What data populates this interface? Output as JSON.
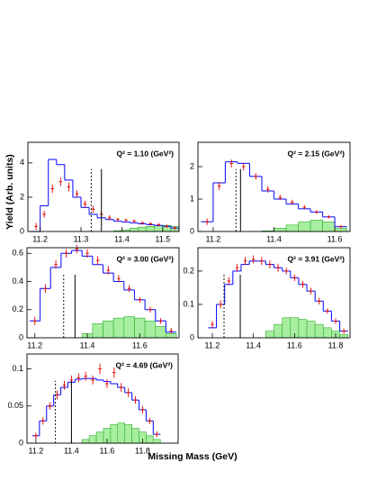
{
  "chart_data": [
    {
      "type": "histogram-fit",
      "annotation": "Q² = 1.10 (GeV²)",
      "ylabel": "Yield (Arb. units)",
      "xlim": [
        11.17,
        11.54
      ],
      "ylim": [
        0,
        5.2
      ],
      "xticks": [
        11.2,
        11.3,
        11.4,
        11.5
      ],
      "yticks": [
        0,
        2,
        4
      ],
      "cuts": {
        "dashed": 11.325,
        "solid": 11.35
      },
      "x": [
        11.19,
        11.21,
        11.23,
        11.25,
        11.27,
        11.29,
        11.31,
        11.33,
        11.35,
        11.37,
        11.39,
        11.41,
        11.43,
        11.45,
        11.47,
        11.49,
        11.51,
        11.53
      ],
      "model": [
        0,
        1.5,
        4.2,
        3.9,
        3.0,
        2.0,
        1.4,
        1.0,
        0.8,
        0.7,
        0.6,
        0.55,
        0.5,
        0.45,
        0.4,
        0.35,
        0.3,
        0.2
      ],
      "data": [
        0.3,
        1.0,
        2.5,
        2.9,
        2.6,
        2.2,
        1.6,
        1.3,
        1.0,
        0.8,
        0.7,
        0.65,
        0.6,
        0.5,
        0.45,
        0.4,
        0.3,
        0.2
      ],
      "errors": [
        0.2,
        0.2,
        0.25,
        0.25,
        0.25,
        0.2,
        0.2,
        0.2,
        0.15,
        0.15,
        0.1,
        0.1,
        0.1,
        0.1,
        0.1,
        0.1,
        0.1,
        0.1
      ],
      "background": [
        0,
        0,
        0,
        0,
        0,
        0,
        0,
        0,
        0,
        0,
        0.05,
        0.1,
        0.2,
        0.25,
        0.3,
        0.35,
        0.35,
        0.3
      ]
    },
    {
      "type": "histogram-fit",
      "annotation": "Q² = 2.15 (GeV²)",
      "xlim": [
        11.15,
        11.65
      ],
      "ylim": [
        0,
        2.75
      ],
      "xticks": [
        11.2,
        11.4,
        11.6
      ],
      "yticks": [
        0,
        1,
        2
      ],
      "cuts": {
        "dashed": 11.275,
        "solid": 11.29
      },
      "x": [
        11.18,
        11.22,
        11.26,
        11.3,
        11.34,
        11.38,
        11.42,
        11.46,
        11.5,
        11.54,
        11.58,
        11.62
      ],
      "model": [
        0.3,
        1.5,
        2.15,
        2.1,
        1.7,
        1.25,
        1.0,
        0.85,
        0.7,
        0.6,
        0.45,
        0.15
      ],
      "data": [
        0.3,
        1.4,
        2.1,
        2.0,
        1.7,
        1.3,
        1.05,
        0.9,
        0.75,
        0.6,
        0.45,
        0.15
      ],
      "errors": [
        0.1,
        0.12,
        0.12,
        0.12,
        0.1,
        0.1,
        0.08,
        0.08,
        0.06,
        0.06,
        0.05,
        0.05
      ],
      "background": [
        0,
        0,
        0,
        0,
        0,
        0.02,
        0.1,
        0.2,
        0.3,
        0.35,
        0.3,
        0.1
      ]
    },
    {
      "type": "histogram-fit",
      "annotation": "Q² = 3.00 (GeV²)",
      "xlim": [
        11.17,
        11.75
      ],
      "ylim": [
        0,
        0.64
      ],
      "xticks": [
        11.2,
        11.4,
        11.6
      ],
      "yticks": [
        0,
        0.2,
        0.4,
        0.6
      ],
      "cuts": {
        "dashed": 11.31,
        "solid": 11.353
      },
      "x": [
        11.2,
        11.24,
        11.28,
        11.32,
        11.36,
        11.4,
        11.44,
        11.48,
        11.52,
        11.56,
        11.6,
        11.64,
        11.68,
        11.72
      ],
      "model": [
        0.12,
        0.35,
        0.5,
        0.6,
        0.62,
        0.58,
        0.52,
        0.46,
        0.4,
        0.34,
        0.27,
        0.2,
        0.12,
        0.04
      ],
      "data": [
        0.12,
        0.35,
        0.52,
        0.6,
        0.63,
        0.6,
        0.55,
        0.48,
        0.42,
        0.35,
        0.27,
        0.2,
        0.12,
        0.05
      ],
      "errors": [
        0.03,
        0.03,
        0.03,
        0.03,
        0.03,
        0.03,
        0.03,
        0.03,
        0.025,
        0.025,
        0.02,
        0.02,
        0.02,
        0.02
      ],
      "background": [
        0,
        0,
        0,
        0,
        0,
        0.03,
        0.1,
        0.12,
        0.14,
        0.15,
        0.14,
        0.12,
        0.08,
        0.03
      ]
    },
    {
      "type": "histogram-fit",
      "annotation": "Q² = 3.91 (GeV²)",
      "xlim": [
        11.13,
        11.87
      ],
      "ylim": [
        0,
        0.27
      ],
      "xticks": [
        11.2,
        11.4,
        11.6,
        11.8
      ],
      "yticks": [
        0,
        0.1,
        0.2
      ],
      "cuts": {
        "dashed": 11.257,
        "solid": 11.336
      },
      "x": [
        11.2,
        11.24,
        11.28,
        11.32,
        11.36,
        11.4,
        11.44,
        11.48,
        11.52,
        11.56,
        11.6,
        11.64,
        11.68,
        11.72,
        11.76,
        11.8,
        11.84
      ],
      "model": [
        0.03,
        0.1,
        0.16,
        0.2,
        0.22,
        0.23,
        0.23,
        0.22,
        0.21,
        0.2,
        0.18,
        0.16,
        0.14,
        0.11,
        0.08,
        0.05,
        0.02
      ],
      "data": [
        0.04,
        0.1,
        0.17,
        0.21,
        0.23,
        0.235,
        0.23,
        0.22,
        0.21,
        0.2,
        0.18,
        0.16,
        0.14,
        0.11,
        0.08,
        0.05,
        0.02
      ],
      "errors": [
        0.01,
        0.012,
        0.012,
        0.012,
        0.012,
        0.012,
        0.012,
        0.012,
        0.012,
        0.01,
        0.01,
        0.01,
        0.01,
        0.01,
        0.008,
        0.008,
        0.008
      ],
      "background": [
        0,
        0,
        0,
        0,
        0,
        0,
        0,
        0.02,
        0.04,
        0.06,
        0.06,
        0.055,
        0.05,
        0.04,
        0.03,
        0.02,
        0.01
      ]
    },
    {
      "type": "histogram-fit",
      "annotation": "Q² = 4.69 (GeV²)",
      "xlabel": "Missing Mass (GeV)",
      "xlim": [
        11.15,
        12.0
      ],
      "ylim": [
        0,
        0.12
      ],
      "xticks": [
        11.2,
        11.4,
        11.6,
        11.8
      ],
      "yticks": [
        0,
        0.05,
        0.1
      ],
      "cuts": {
        "dashed": 11.31,
        "solid": 11.4
      },
      "x": [
        11.2,
        11.24,
        11.28,
        11.32,
        11.36,
        11.4,
        11.44,
        11.48,
        11.52,
        11.56,
        11.6,
        11.64,
        11.68,
        11.72,
        11.76,
        11.8,
        11.84,
        11.88
      ],
      "model": [
        0.01,
        0.03,
        0.05,
        0.065,
        0.075,
        0.082,
        0.086,
        0.087,
        0.087,
        0.085,
        0.083,
        0.08,
        0.075,
        0.068,
        0.058,
        0.045,
        0.03,
        0.012
      ],
      "data": [
        0.01,
        0.03,
        0.05,
        0.065,
        0.078,
        0.085,
        0.088,
        0.09,
        0.085,
        0.1,
        0.08,
        0.095,
        0.075,
        0.068,
        0.058,
        0.045,
        0.03,
        0.012
      ],
      "errors": [
        0.004,
        0.005,
        0.005,
        0.006,
        0.006,
        0.006,
        0.006,
        0.006,
        0.006,
        0.007,
        0.006,
        0.007,
        0.006,
        0.006,
        0.005,
        0.005,
        0.004,
        0.004
      ],
      "background": [
        0,
        0,
        0,
        0,
        0,
        0,
        0,
        0.005,
        0.01,
        0.015,
        0.02,
        0.025,
        0.027,
        0.025,
        0.02,
        0.015,
        0.01,
        0.005
      ]
    }
  ]
}
